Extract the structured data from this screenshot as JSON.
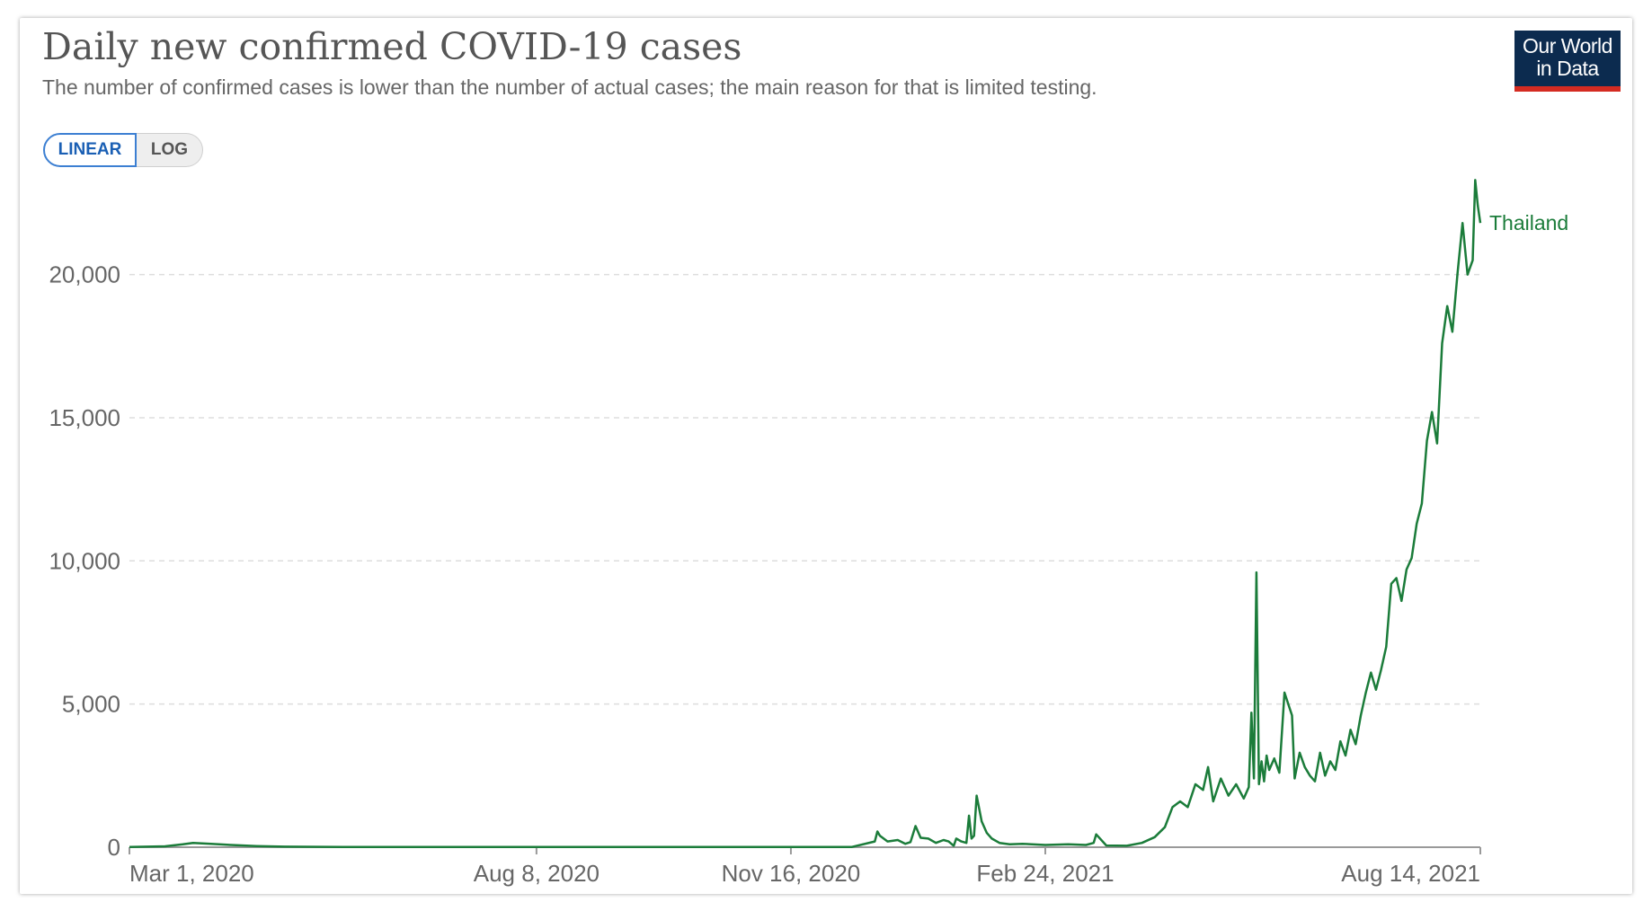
{
  "header": {
    "title": "Daily new confirmed COVID-19 cases",
    "subtitle": "The number of confirmed cases is lower than the number of actual cases; the main reason for that is limited testing."
  },
  "logo": {
    "line1": "Our World",
    "line2": "in Data"
  },
  "scale_toggle": {
    "linear_label": "LINEAR",
    "log_label": "LOG",
    "selected": "LINEAR"
  },
  "colors": {
    "series": "#1b7c3a",
    "grid": "#dddddd",
    "axis": "#999999",
    "logo_bg": "#0c2b4f",
    "logo_accent": "#d42b21",
    "toggle_active": "#1a5fb4"
  },
  "chart_data": {
    "type": "line",
    "title": "Daily new confirmed COVID-19 cases",
    "subtitle": "The number of confirmed cases is lower than the number of actual cases; the main reason for that is limited testing.",
    "scale": "linear",
    "xlim": [
      "2020-03-01",
      "2021-08-14"
    ],
    "ylim": [
      0,
      23000
    ],
    "y_ticks": [
      0,
      5000,
      10000,
      15000,
      20000
    ],
    "y_tick_labels": [
      "0",
      "5,000",
      "10,000",
      "15,000",
      "20,000"
    ],
    "x_ticks": [
      "2020-03-01",
      "2020-08-08",
      "2020-11-16",
      "2021-02-24",
      "2021-08-14"
    ],
    "x_tick_labels": [
      "Mar 1, 2020",
      "Aug 8, 2020",
      "Nov 16, 2020",
      "Feb 24, 2021",
      "Aug 14, 2021"
    ],
    "grid": "horizontal dashed",
    "series": [
      {
        "name": "Thailand",
        "x": [
          "2020-03-01",
          "2020-03-15",
          "2020-03-22",
          "2020-03-26",
          "2020-04-02",
          "2020-04-10",
          "2020-04-20",
          "2020-05-01",
          "2020-06-01",
          "2020-07-01",
          "2020-08-08",
          "2020-09-01",
          "2020-10-01",
          "2020-11-16",
          "2020-12-10",
          "2020-12-19",
          "2020-12-20",
          "2020-12-21",
          "2020-12-24",
          "2020-12-28",
          "2020-12-31",
          "2021-01-02",
          "2021-01-04",
          "2021-01-06",
          "2021-01-09",
          "2021-01-12",
          "2021-01-15",
          "2021-01-17",
          "2021-01-19",
          "2021-01-20",
          "2021-01-22",
          "2021-01-24",
          "2021-01-25",
          "2021-01-26",
          "2021-01-27",
          "2021-01-28",
          "2021-01-30",
          "2021-02-01",
          "2021-02-03",
          "2021-02-06",
          "2021-02-10",
          "2021-02-15",
          "2021-02-24",
          "2021-03-05",
          "2021-03-12",
          "2021-03-15",
          "2021-03-16",
          "2021-03-20",
          "2021-03-28",
          "2021-04-03",
          "2021-04-08",
          "2021-04-12",
          "2021-04-15",
          "2021-04-18",
          "2021-04-21",
          "2021-04-24",
          "2021-04-27",
          "2021-04-29",
          "2021-05-01",
          "2021-05-04",
          "2021-05-07",
          "2021-05-10",
          "2021-05-13",
          "2021-05-15",
          "2021-05-16",
          "2021-05-17",
          "2021-05-18",
          "2021-05-19",
          "2021-05-20",
          "2021-05-21",
          "2021-05-22",
          "2021-05-23",
          "2021-05-25",
          "2021-05-27",
          "2021-05-29",
          "2021-06-01",
          "2021-06-02",
          "2021-06-04",
          "2021-06-06",
          "2021-06-08",
          "2021-06-10",
          "2021-06-12",
          "2021-06-14",
          "2021-06-16",
          "2021-06-18",
          "2021-06-20",
          "2021-06-22",
          "2021-06-24",
          "2021-06-26",
          "2021-06-28",
          "2021-06-30",
          "2021-07-02",
          "2021-07-04",
          "2021-07-06",
          "2021-07-08",
          "2021-07-10",
          "2021-07-12",
          "2021-07-14",
          "2021-07-16",
          "2021-07-18",
          "2021-07-20",
          "2021-07-22",
          "2021-07-24",
          "2021-07-26",
          "2021-07-28",
          "2021-07-30",
          "2021-08-01",
          "2021-08-03",
          "2021-08-05",
          "2021-08-07",
          "2021-08-09",
          "2021-08-11",
          "2021-08-12",
          "2021-08-13",
          "2021-08-14"
        ],
        "values": [
          5,
          30,
          100,
          150,
          120,
          80,
          40,
          20,
          5,
          5,
          5,
          5,
          5,
          10,
          10,
          200,
          550,
          400,
          200,
          250,
          120,
          180,
          740,
          330,
          300,
          150,
          250,
          200,
          50,
          300,
          200,
          150,
          1100,
          300,
          400,
          1800,
          900,
          500,
          300,
          150,
          100,
          120,
          80,
          100,
          80,
          150,
          450,
          60,
          50,
          150,
          350,
          700,
          1400,
          1600,
          1400,
          2200,
          2000,
          2800,
          1600,
          2400,
          1800,
          2200,
          1700,
          2100,
          4700,
          2400,
          9600,
          2200,
          3000,
          2300,
          3200,
          2700,
          3100,
          2600,
          5400,
          4600,
          2400,
          3300,
          2800,
          2500,
          2300,
          3300,
          2500,
          3000,
          2700,
          3700,
          3200,
          4100,
          3600,
          4600,
          5400,
          6100,
          5500,
          6200,
          7000,
          9200,
          9400,
          8600,
          9700,
          10100,
          11300,
          12000,
          14200,
          15200,
          14100,
          17600,
          18900,
          18000,
          20000,
          21800,
          20000,
          20500,
          23300,
          22400,
          21800
        ]
      }
    ]
  }
}
